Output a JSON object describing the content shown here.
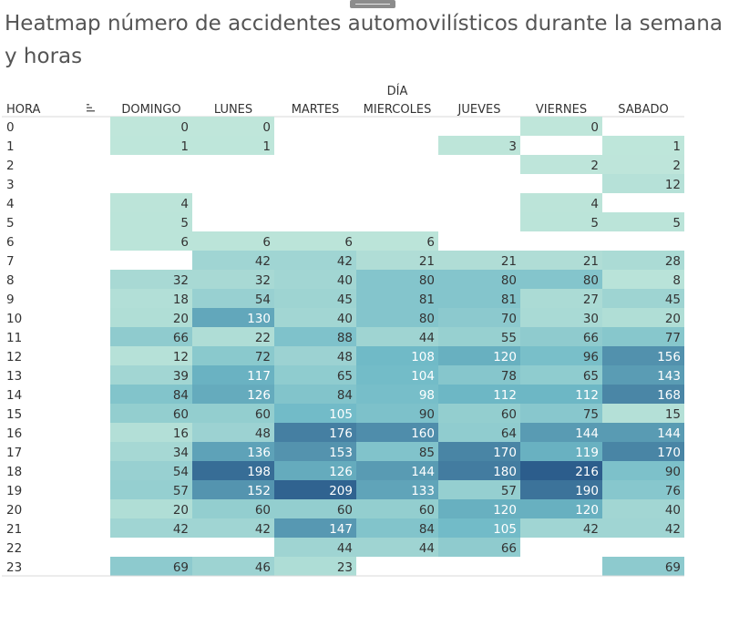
{
  "title": "Heatmap número de accidentes automovilísticos durante la semana y horas",
  "chart_data": {
    "type": "heatmap",
    "title": "Heatmap número de accidentes automovilísticos durante la semana y horas",
    "column_header": "DÍA",
    "row_header": "HORA",
    "sort_icon": "sort-icon",
    "columns": [
      "DOMINGO",
      "LUNES",
      "MARTES",
      "MIERCOLES",
      "JUEVES",
      "VIERNES",
      "SABADO"
    ],
    "rows": [
      "0",
      "1",
      "2",
      "3",
      "4",
      "5",
      "6",
      "7",
      "8",
      "9",
      "10",
      "11",
      "12",
      "13",
      "14",
      "15",
      "16",
      "17",
      "18",
      "19",
      "20",
      "21",
      "22",
      "23"
    ],
    "values": [
      [
        0,
        0,
        null,
        null,
        null,
        0,
        null
      ],
      [
        1,
        1,
        null,
        null,
        3,
        null,
        1
      ],
      [
        null,
        null,
        null,
        null,
        null,
        2,
        2
      ],
      [
        null,
        null,
        null,
        null,
        null,
        null,
        12
      ],
      [
        4,
        null,
        null,
        null,
        null,
        4,
        null
      ],
      [
        5,
        null,
        null,
        null,
        null,
        5,
        5
      ],
      [
        6,
        6,
        6,
        6,
        null,
        null,
        null
      ],
      [
        null,
        42,
        42,
        21,
        21,
        21,
        28
      ],
      [
        32,
        32,
        40,
        80,
        80,
        80,
        8
      ],
      [
        18,
        54,
        45,
        81,
        81,
        27,
        45
      ],
      [
        20,
        130,
        40,
        80,
        70,
        30,
        20
      ],
      [
        66,
        22,
        88,
        44,
        55,
        66,
        77
      ],
      [
        12,
        72,
        48,
        108,
        120,
        96,
        156
      ],
      [
        39,
        117,
        65,
        104,
        78,
        65,
        143
      ],
      [
        84,
        126,
        84,
        98,
        112,
        112,
        168
      ],
      [
        60,
        60,
        105,
        90,
        60,
        75,
        15
      ],
      [
        16,
        48,
        176,
        160,
        64,
        144,
        144
      ],
      [
        34,
        136,
        153,
        85,
        170,
        119,
        170
      ],
      [
        54,
        198,
        126,
        144,
        180,
        216,
        90
      ],
      [
        57,
        152,
        209,
        133,
        57,
        190,
        76
      ],
      [
        20,
        60,
        60,
        60,
        120,
        120,
        40
      ],
      [
        42,
        42,
        147,
        84,
        105,
        42,
        42
      ],
      [
        null,
        null,
        44,
        44,
        66,
        null,
        null
      ],
      [
        69,
        46,
        23,
        null,
        null,
        null,
        69
      ]
    ],
    "color_scale": {
      "low": "#bfe6da",
      "high": "#2c5d8c",
      "text_dark": "#333333",
      "text_light": "#ffffff"
    }
  }
}
